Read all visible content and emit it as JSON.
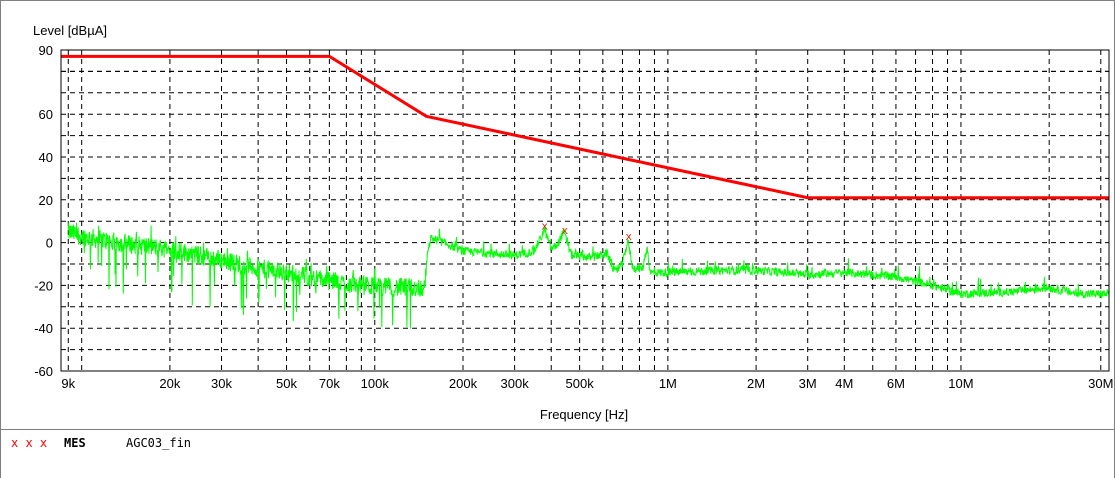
{
  "chart_data": {
    "type": "line",
    "xscale": "log",
    "xlabel": "Frequency [Hz]",
    "ylabel": "Level [dBµA]",
    "xlim": [
      8500,
      32000000
    ],
    "ylim": [
      -60,
      90
    ],
    "grid": true,
    "x_ticks": [
      9000,
      20000,
      30000,
      50000,
      70000,
      100000,
      200000,
      300000,
      500000,
      1000000,
      2000000,
      3000000,
      4000000,
      6000000,
      10000000,
      30000000
    ],
    "x_tick_labels": [
      "9k",
      "20k",
      "30k",
      "50k",
      "70k",
      "100k",
      "200k",
      "300k",
      "500k",
      "1M",
      "2M",
      "3M",
      "4M",
      "6M",
      "10M",
      "30M"
    ],
    "y_ticks": [
      90,
      60,
      40,
      20,
      0,
      -20,
      -40,
      -60
    ],
    "y_tick_labels": [
      "90",
      "60",
      "40",
      "20",
      "0",
      "-20",
      "-40",
      "-60"
    ],
    "series": [
      {
        "kind": "limit",
        "color": "#ff0000",
        "points": [
          [
            8500,
            87
          ],
          [
            70000,
            87
          ],
          [
            150000,
            59
          ],
          [
            3000000,
            21
          ],
          [
            32000000,
            21
          ]
        ]
      },
      {
        "kind": "measurement",
        "color": "#00ff00",
        "points": [
          [
            9000,
            5
          ],
          [
            10000,
            3
          ],
          [
            12000,
            1
          ],
          [
            15000,
            -1
          ],
          [
            20000,
            -3
          ],
          [
            25000,
            -6
          ],
          [
            30000,
            -8
          ],
          [
            40000,
            -12
          ],
          [
            50000,
            -14
          ],
          [
            60000,
            -16
          ],
          [
            70000,
            -18
          ],
          [
            90000,
            -20
          ],
          [
            120000,
            -21
          ],
          [
            148000,
            -21
          ],
          [
            150000,
            -9
          ],
          [
            155000,
            2
          ],
          [
            165000,
            1
          ],
          [
            200000,
            -4
          ],
          [
            250000,
            -5
          ],
          [
            300000,
            -6
          ],
          [
            350000,
            -4
          ],
          [
            380000,
            6
          ],
          [
            400000,
            -3
          ],
          [
            420000,
            -1
          ],
          [
            440000,
            5
          ],
          [
            470000,
            -6
          ],
          [
            550000,
            -7
          ],
          [
            620000,
            -5
          ],
          [
            660000,
            -14
          ],
          [
            700000,
            -10
          ],
          [
            730000,
            1
          ],
          [
            760000,
            -12
          ],
          [
            820000,
            -12
          ],
          [
            850000,
            -2
          ],
          [
            870000,
            -14
          ],
          [
            1000000,
            -14
          ],
          [
            1500000,
            -13
          ],
          [
            2000000,
            -13
          ],
          [
            3000000,
            -15
          ],
          [
            4000000,
            -14
          ],
          [
            6000000,
            -16
          ],
          [
            8000000,
            -20
          ],
          [
            10000000,
            -24
          ],
          [
            15000000,
            -23
          ],
          [
            20000000,
            -21
          ],
          [
            25000000,
            -24
          ],
          [
            32000000,
            -24
          ]
        ]
      }
    ],
    "markers": [
      {
        "x": 380000,
        "y": 8
      },
      {
        "x": 445000,
        "y": 6
      },
      {
        "x": 735000,
        "y": 3
      }
    ]
  },
  "legend": {
    "marker_symbols": "x x x",
    "label": "MES",
    "name": "AGC03_fin"
  }
}
